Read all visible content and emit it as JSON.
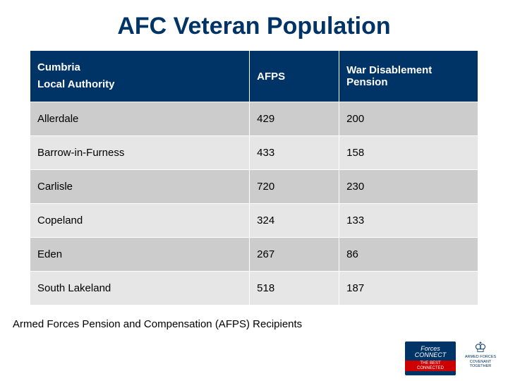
{
  "title": "AFC Veteran Population",
  "table": {
    "type": "table",
    "header_bg": "#003366",
    "header_color": "#ffffff",
    "row_odd_bg": "#cccccc",
    "row_even_bg": "#e6e6e6",
    "text_color": "#000000",
    "columns": {
      "col1_line1": "Cumbria",
      "col1_line2": "Local Authority",
      "col2": "AFPS",
      "col3": "War Disablement Pension"
    },
    "rows": [
      {
        "authority": "Allerdale",
        "afps": "429",
        "wdp": "200"
      },
      {
        "authority": "Barrow-in-Furness",
        "afps": "433",
        "wdp": "158"
      },
      {
        "authority": "Carlisle",
        "afps": "720",
        "wdp": "230"
      },
      {
        "authority": "Copeland",
        "afps": "324",
        "wdp": "133"
      },
      {
        "authority": "Eden",
        "afps": "267",
        "wdp": "86"
      },
      {
        "authority": "South Lakeland",
        "afps": "518",
        "wdp": "187"
      }
    ]
  },
  "footer": "Armed Forces Pension and Compensation (AFPS) Recipients",
  "logos": {
    "forces_connect": {
      "line1": "Forces",
      "line2": "CONNECT",
      "tag": "THE BEST CONNECTED"
    },
    "covenant": {
      "crest": "♔",
      "line1": "ARMED FORCES",
      "line2": "COVENANT",
      "tag": "TOGETHER"
    }
  },
  "colors": {
    "title": "#003366",
    "accent_red": "#cc0000",
    "background": "#ffffff"
  }
}
